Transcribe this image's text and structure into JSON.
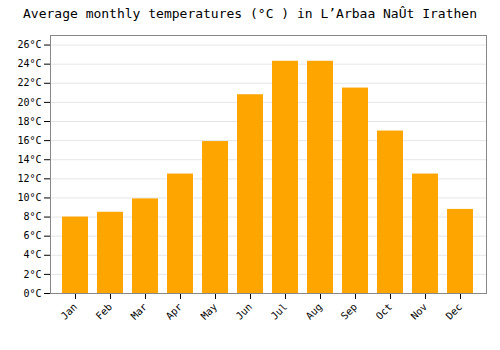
{
  "chart_data": {
    "type": "bar",
    "title": "Average monthly temperatures (°C ) in L’Arbaa NaÛt Irathen",
    "categories": [
      "Jan",
      "Feb",
      "Mar",
      "Apr",
      "May",
      "Jun",
      "Jul",
      "Aug",
      "Sep",
      "Oct",
      "Nov",
      "Dec"
    ],
    "values": [
      8.0,
      8.5,
      9.9,
      12.5,
      15.9,
      20.8,
      24.3,
      24.3,
      21.5,
      17.0,
      12.5,
      8.8
    ],
    "color": "#FFA500",
    "ylim": [
      0,
      27
    ],
    "yticks": [
      {
        "value": 0,
        "label": "0°C"
      },
      {
        "value": 2,
        "label": "2°C"
      },
      {
        "value": 4,
        "label": "4°C"
      },
      {
        "value": 6,
        "label": "6°C"
      },
      {
        "value": 8,
        "label": "8°C"
      },
      {
        "value": 10,
        "label": "10°C"
      },
      {
        "value": 12,
        "label": "12°C"
      },
      {
        "value": 14,
        "label": "14°C"
      },
      {
        "value": 16,
        "label": "16°C"
      },
      {
        "value": 18,
        "label": "18°C"
      },
      {
        "value": 20,
        "label": "20°C"
      },
      {
        "value": 22,
        "label": "22°C"
      },
      {
        "value": 24,
        "label": "24°C"
      },
      {
        "value": 26,
        "label": "26°C"
      }
    ],
    "grid": true
  }
}
